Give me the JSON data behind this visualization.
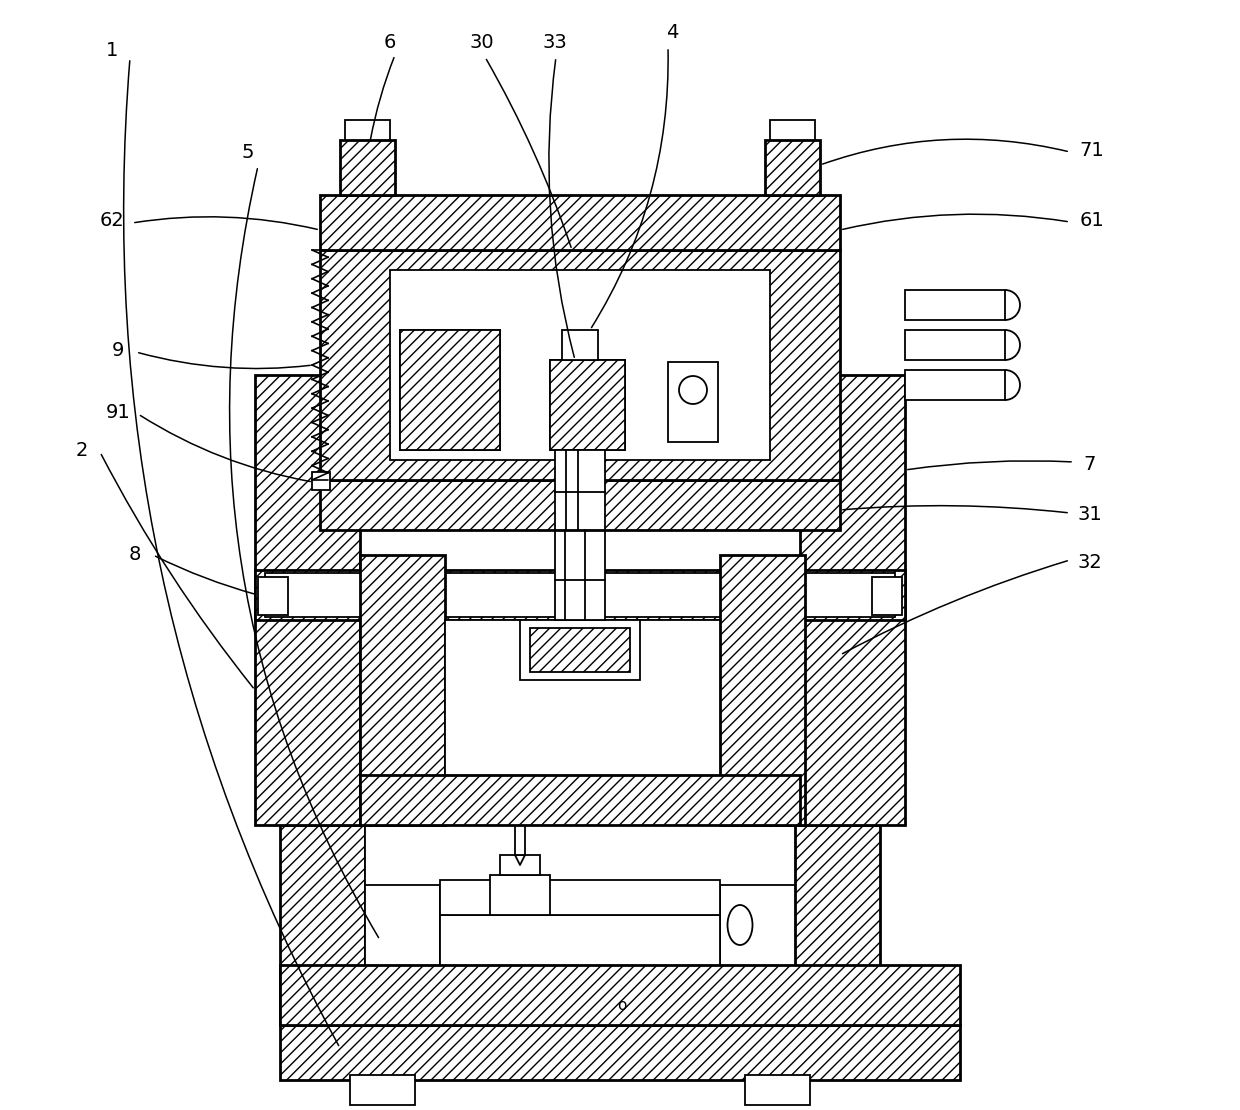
{
  "bg": "#ffffff",
  "lc": "#000000",
  "lw": 1.3,
  "lwt": 2.0,
  "fs": 14,
  "fig_w": 12.4,
  "fig_h": 11.1,
  "dpi": 100,
  "hatch": "///"
}
